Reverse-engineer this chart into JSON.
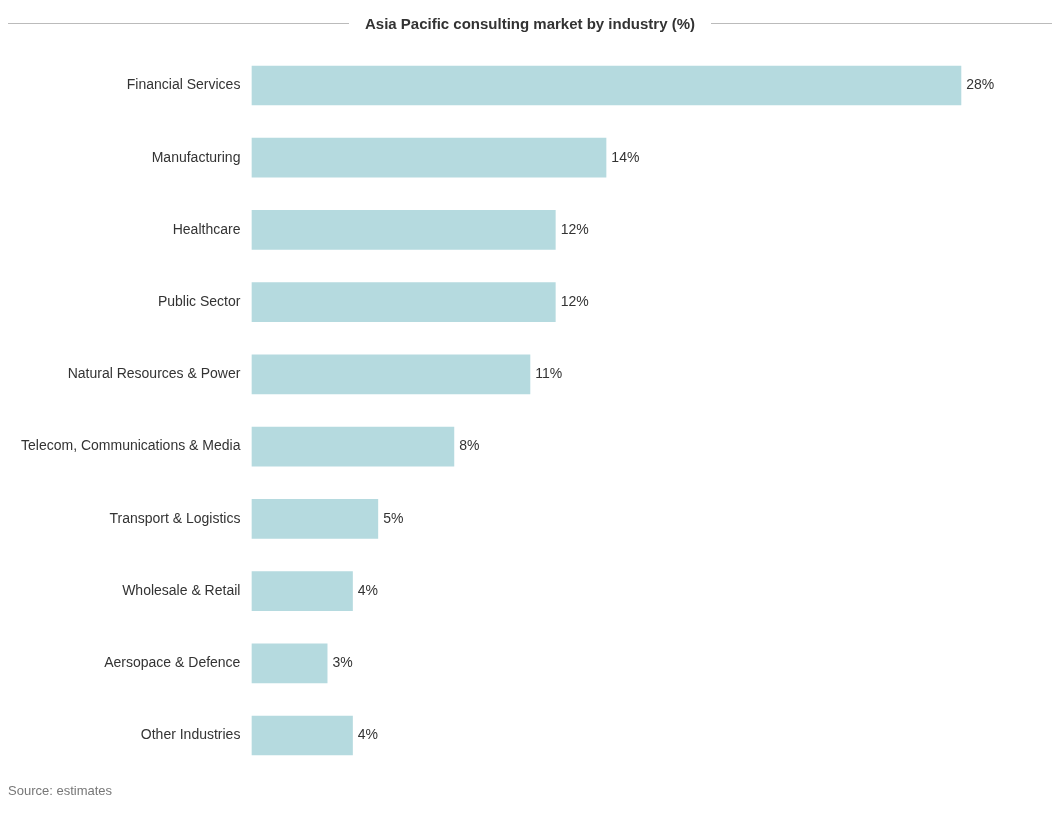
{
  "chart_data": {
    "type": "bar",
    "orientation": "horizontal",
    "title": "Asia Pacific consulting market by industry (%)",
    "categories": [
      "Financial Services",
      "Manufacturing",
      "Healthcare",
      "Public Sector",
      "Natural Resources & Power",
      "Telecom, Communications & Media",
      "Transport & Logistics",
      "Wholesale & Retail",
      "Aersopace & Defence",
      "Other Industries"
    ],
    "values": [
      28,
      14,
      12,
      12,
      11,
      8,
      5,
      4,
      3,
      4
    ],
    "value_labels": [
      "28%",
      "14%",
      "12%",
      "12%",
      "11%",
      "8%",
      "5%",
      "4%",
      "3%",
      "4%"
    ],
    "color": "#b5dadf",
    "legend": false,
    "annotations": [
      "Source: estimates"
    ]
  }
}
